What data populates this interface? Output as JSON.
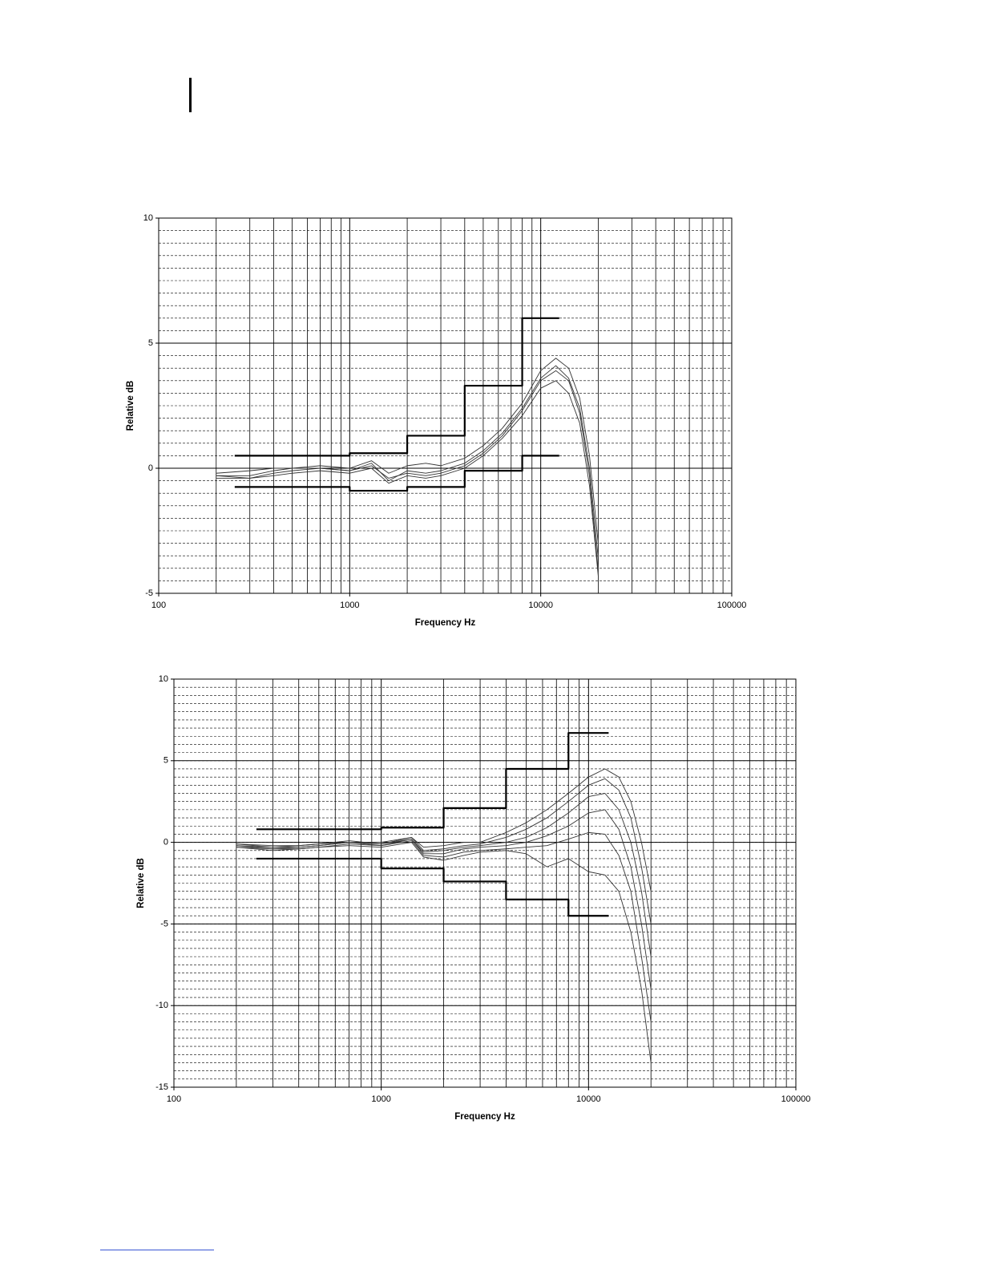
{
  "chart_data": [
    {
      "type": "line",
      "xlabel": "Frequency Hz",
      "ylabel": "Relative dB",
      "xscale": "log",
      "xlim": [
        100,
        100000
      ],
      "xticks": [
        100,
        1000,
        10000,
        100000
      ],
      "ylim": [
        -5,
        10
      ],
      "yticks": [
        -5,
        0,
        5,
        10
      ],
      "grid": true,
      "minor_grid": true,
      "series": [
        {
          "color": "#000000",
          "line_width": 2.2,
          "x": [
            250,
            1000,
            1000,
            2000,
            2000,
            4000,
            4000,
            8000,
            8000,
            12500
          ],
          "values": [
            0.5,
            0.5,
            0.6,
            0.6,
            1.3,
            1.3,
            3.3,
            3.3,
            6,
            6
          ]
        },
        {
          "color": "#000000",
          "line_width": 2.2,
          "x": [
            250,
            1000,
            1000,
            2000,
            2000,
            4000,
            4000,
            8000,
            8000,
            12500
          ],
          "values": [
            -0.75,
            -0.75,
            -0.9,
            -0.9,
            -0.75,
            -0.75,
            -0.1,
            -0.1,
            0.5,
            0.5
          ]
        },
        {
          "color": "#333333",
          "line_width": 0.9,
          "x": [
            200,
            300,
            400,
            500,
            700,
            1000,
            1300,
            1600,
            2000,
            2500,
            3000,
            4000,
            5000,
            6300,
            8000,
            10000,
            12000,
            14000,
            16000,
            18000,
            20000
          ],
          "values": [
            -0.2,
            -0.1,
            0,
            0,
            0.1,
            0,
            0.3,
            -0.2,
            0.1,
            0.2,
            0.1,
            0.4,
            0.9,
            1.6,
            2.6,
            3.9,
            4.4,
            4.0,
            2.8,
            0.5,
            -3.0
          ]
        },
        {
          "color": "#333333",
          "line_width": 0.9,
          "x": [
            200,
            300,
            400,
            500,
            700,
            1000,
            1300,
            1600,
            2000,
            2500,
            3000,
            4000,
            5000,
            6300,
            8000,
            10000,
            12000,
            14000,
            16000,
            18000,
            20000
          ],
          "values": [
            -0.3,
            -0.3,
            -0.1,
            0,
            0,
            -0.1,
            0.2,
            -0.5,
            -0.1,
            -0.2,
            -0.1,
            0.2,
            0.7,
            1.4,
            2.4,
            3.6,
            4.1,
            3.6,
            2.4,
            0,
            -3.6
          ]
        },
        {
          "color": "#333333",
          "line_width": 0.9,
          "x": [
            200,
            300,
            400,
            500,
            700,
            1000,
            1300,
            1600,
            2000,
            2500,
            3000,
            4000,
            5000,
            6300,
            8000,
            10000,
            12000,
            14000,
            16000,
            18000,
            20000
          ],
          "values": [
            -0.3,
            -0.4,
            -0.2,
            -0.1,
            0,
            -0.1,
            0.1,
            -0.4,
            -0.2,
            -0.3,
            -0.2,
            0.1,
            0.6,
            1.3,
            2.3,
            3.5,
            3.9,
            3.5,
            2.2,
            -0.3,
            -4.1
          ]
        },
        {
          "color": "#333333",
          "line_width": 0.9,
          "x": [
            200,
            300,
            400,
            500,
            700,
            1000,
            1300,
            1600,
            2000,
            2500,
            3000,
            4000,
            5000,
            6300,
            8000,
            10000,
            12000,
            14000,
            16000,
            18000,
            20000
          ],
          "values": [
            -0.4,
            -0.4,
            -0.3,
            -0.2,
            -0.1,
            -0.2,
            0,
            -0.6,
            -0.3,
            -0.4,
            -0.3,
            0,
            0.5,
            1.2,
            2.1,
            3.2,
            3.5,
            3.0,
            1.8,
            -0.7,
            -4.3
          ]
        }
      ]
    },
    {
      "type": "line",
      "xlabel": "Frequency Hz",
      "ylabel": "Relative dB",
      "xscale": "log",
      "xlim": [
        100,
        100000
      ],
      "xticks": [
        100,
        1000,
        10000,
        100000
      ],
      "ylim": [
        -15,
        10
      ],
      "yticks": [
        -15,
        -10,
        -5,
        0,
        5,
        10
      ],
      "grid": true,
      "minor_grid": true,
      "series": [
        {
          "color": "#000000",
          "line_width": 2.2,
          "x": [
            250,
            1000,
            1000,
            2000,
            2000,
            4000,
            4000,
            8000,
            8000,
            12500
          ],
          "values": [
            0.8,
            0.8,
            0.9,
            0.9,
            2.1,
            2.1,
            4.5,
            4.5,
            6.7,
            6.7
          ]
        },
        {
          "color": "#000000",
          "line_width": 2.2,
          "x": [
            250,
            1000,
            1000,
            2000,
            2000,
            4000,
            4000,
            8000,
            8000,
            12500
          ],
          "values": [
            -1,
            -1,
            -1.6,
            -1.6,
            -2.4,
            -2.4,
            -3.5,
            -3.5,
            -4.5,
            -4.5
          ]
        },
        {
          "color": "#333333",
          "line_width": 0.9,
          "x": [
            200,
            300,
            400,
            500,
            700,
            1000,
            1400,
            1600,
            2000,
            2500,
            3000,
            4000,
            5000,
            6300,
            8000,
            10000,
            12000,
            14000,
            16000,
            18000,
            20000
          ],
          "values": [
            -0.1,
            -0.2,
            -0.2,
            -0.1,
            0,
            0,
            0.3,
            -0.3,
            -0.2,
            0,
            0,
            0.6,
            1.2,
            2.0,
            3.0,
            4.0,
            4.5,
            4.0,
            2.5,
            0,
            -3
          ]
        },
        {
          "color": "#333333",
          "line_width": 0.9,
          "x": [
            200,
            300,
            400,
            500,
            700,
            1000,
            1400,
            1600,
            2000,
            2500,
            3000,
            4000,
            5000,
            6300,
            8000,
            10000,
            12000,
            14000,
            16000,
            18000,
            20000
          ],
          "values": [
            -0.1,
            -0.3,
            -0.2,
            -0.1,
            0.1,
            -0.1,
            0.3,
            -0.5,
            -0.4,
            -0.2,
            -0.1,
            0.3,
            0.8,
            1.5,
            2.5,
            3.5,
            3.9,
            3.2,
            1.5,
            -1.5,
            -5
          ]
        },
        {
          "color": "#333333",
          "line_width": 0.9,
          "x": [
            200,
            300,
            400,
            500,
            700,
            1000,
            1400,
            1600,
            2000,
            2500,
            3000,
            4000,
            5000,
            6300,
            8000,
            10000,
            12000,
            14000,
            16000,
            18000,
            20000
          ],
          "values": [
            -0.2,
            -0.3,
            -0.3,
            -0.2,
            0,
            -0.1,
            0.2,
            -0.6,
            -0.5,
            -0.3,
            -0.2,
            0,
            0.3,
            0.9,
            1.8,
            2.8,
            3.0,
            2.0,
            0,
            -3,
            -7
          ]
        },
        {
          "color": "#333333",
          "line_width": 0.9,
          "x": [
            200,
            300,
            400,
            500,
            700,
            1000,
            1400,
            1600,
            2000,
            2500,
            3000,
            4000,
            5000,
            6300,
            8000,
            10000,
            12000,
            14000,
            16000,
            18000,
            20000
          ],
          "values": [
            -0.2,
            -0.4,
            -0.3,
            -0.2,
            0,
            -0.2,
            0.2,
            -0.7,
            -0.7,
            -0.4,
            -0.3,
            -0.2,
            0,
            0.4,
            1.0,
            1.8,
            2.0,
            0.8,
            -1.5,
            -5,
            -9
          ]
        },
        {
          "color": "#333333",
          "line_width": 0.9,
          "x": [
            200,
            300,
            400,
            500,
            700,
            1000,
            1400,
            1600,
            2000,
            2500,
            3000,
            4000,
            5000,
            6300,
            8000,
            10000,
            12000,
            14000,
            16000,
            18000,
            20000
          ],
          "values": [
            -0.3,
            -0.4,
            -0.4,
            -0.3,
            -0.1,
            -0.2,
            0.1,
            -0.8,
            -0.9,
            -0.6,
            -0.5,
            -0.4,
            -0.3,
            -0.2,
            0.2,
            0.6,
            0.5,
            -0.8,
            -3,
            -7,
            -11
          ]
        },
        {
          "color": "#333333",
          "line_width": 0.9,
          "x": [
            200,
            300,
            400,
            500,
            700,
            1000,
            1400,
            1600,
            2000,
            2500,
            3000,
            4000,
            5000,
            6300,
            8000,
            10000,
            12000,
            14000,
            16000,
            18000,
            20000
          ],
          "values": [
            -0.3,
            -0.5,
            -0.4,
            -0.3,
            -0.2,
            -0.3,
            0,
            -0.9,
            -1.1,
            -0.8,
            -0.6,
            -0.5,
            -0.7,
            -1.5,
            -1.0,
            -1.8,
            -2.0,
            -3,
            -5.5,
            -9,
            -13.5
          ]
        }
      ]
    }
  ]
}
